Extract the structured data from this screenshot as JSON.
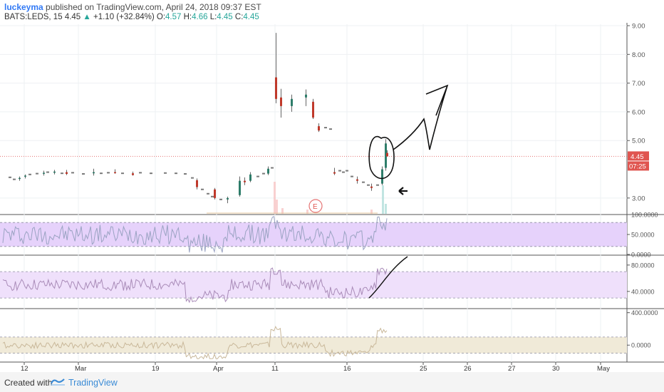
{
  "header": {
    "author": "luckeyma",
    "published_text": "published on TradingView.com, April 24, 2018 09:37 EST"
  },
  "ticker": {
    "symbol": "BATS:LEDS, 15",
    "price": "4.45",
    "arrow": "▲",
    "change": "+1.10 (+32.84%)",
    "open_label": "O:",
    "open": "4.57",
    "high_label": "H:",
    "high": "4.66",
    "low_label": "L:",
    "low": "4.45",
    "close_label": "C:",
    "close": "4.45"
  },
  "footer": {
    "created_with": "Created with",
    "brand": "TradingView"
  },
  "price_badges": {
    "last_price": "4.45",
    "countdown": "07:25"
  },
  "earnings_marker": "E",
  "colors": {
    "up": "#26a69a",
    "down": "#ef5350",
    "badge": "#e05550",
    "rsi_band": "#e6d2fb",
    "mid_band": "#efe0fb",
    "low_band": "#f0ead8",
    "line": "#9aa3b5"
  },
  "chart_data": [
    {
      "type": "candlestick",
      "title": "",
      "y_ticks": [
        "9.00",
        "8.00",
        "7.00",
        "6.00",
        "5.00",
        "3.00"
      ],
      "x_ticks": [
        "12",
        "Mar",
        "19",
        "Apr",
        "11",
        "16",
        "25",
        "26",
        "27",
        "30",
        "May"
      ],
      "ylim": [
        2.45,
        9.05
      ],
      "last_price": 4.45,
      "series": [
        {
          "x": "Mar 12",
          "o": 3.68,
          "h": 3.75,
          "l": 3.6,
          "c": 3.7
        },
        {
          "x": "Mar 13",
          "o": 3.75,
          "h": 3.82,
          "l": 3.68,
          "c": 3.78
        },
        {
          "x": "Mar 14",
          "o": 3.85,
          "h": 3.95,
          "l": 3.78,
          "c": 3.88
        },
        {
          "x": "Mar 15",
          "o": 3.88,
          "h": 3.98,
          "l": 3.82,
          "c": 3.92
        },
        {
          "x": "Mar 16",
          "o": 3.9,
          "h": 3.98,
          "l": 3.8,
          "c": 3.84
        },
        {
          "x": "Mar 19",
          "o": 3.86,
          "h": 4.02,
          "l": 3.78,
          "c": 3.9
        },
        {
          "x": "Mar 20",
          "o": 3.9,
          "h": 4.0,
          "l": 3.85,
          "c": 3.88
        },
        {
          "x": "Mar 21",
          "o": 3.86,
          "h": 3.92,
          "l": 3.78,
          "c": 3.8
        },
        {
          "x": "Mar 22",
          "o": 3.62,
          "h": 3.68,
          "l": 3.3,
          "c": 3.38
        },
        {
          "x": "Mar 23",
          "o": 3.3,
          "h": 3.35,
          "l": 2.95,
          "c": 3.0
        },
        {
          "x": "Apr 2",
          "o": 2.95,
          "h": 3.05,
          "l": 2.82,
          "c": 3.0
        },
        {
          "x": "Apr 3",
          "o": 3.1,
          "h": 3.75,
          "l": 3.05,
          "c": 3.6
        },
        {
          "x": "Apr 4",
          "o": 3.6,
          "h": 3.72,
          "l": 3.45,
          "c": 3.55
        },
        {
          "x": "Apr 5",
          "o": 3.6,
          "h": 3.9,
          "l": 3.55,
          "c": 3.82
        },
        {
          "x": "Apr 6",
          "o": 3.85,
          "h": 4.1,
          "l": 3.8,
          "c": 4.02
        },
        {
          "x": "Apr 11 a",
          "o": 7.2,
          "h": 8.75,
          "l": 6.3,
          "c": 6.45
        },
        {
          "x": "Apr 11 b",
          "o": 6.5,
          "h": 6.8,
          "l": 5.8,
          "c": 6.2
        },
        {
          "x": "Apr 12",
          "o": 6.2,
          "h": 6.6,
          "l": 6.0,
          "c": 6.45
        },
        {
          "x": "Apr 13",
          "o": 6.5,
          "h": 6.78,
          "l": 6.2,
          "c": 6.6
        },
        {
          "x": "Apr 13 b",
          "o": 6.35,
          "h": 6.45,
          "l": 5.75,
          "c": 5.8
        },
        {
          "x": "Apr 16",
          "o": 5.5,
          "h": 5.6,
          "l": 5.3,
          "c": 5.35
        },
        {
          "x": "Apr 17",
          "o": 3.9,
          "h": 4.05,
          "l": 3.8,
          "c": 3.85
        },
        {
          "x": "Apr 18",
          "o": 3.65,
          "h": 3.75,
          "l": 3.5,
          "c": 3.6
        },
        {
          "x": "Apr 19",
          "o": 3.4,
          "h": 3.5,
          "l": 3.25,
          "c": 3.35
        },
        {
          "x": "Apr 20",
          "o": 3.5,
          "h": 4.1,
          "l": 3.45,
          "c": 4.0
        },
        {
          "x": "Apr 23",
          "o": 4.05,
          "h": 5.05,
          "l": 3.95,
          "c": 4.9
        },
        {
          "x": "Apr 24",
          "o": 4.57,
          "h": 4.66,
          "l": 4.45,
          "c": 4.45
        }
      ]
    },
    {
      "type": "line",
      "name": "oscillator 1",
      "y_ticks": [
        "100.0000",
        "50.0000",
        "0.0000"
      ],
      "ylim": [
        0,
        100
      ],
      "band": [
        20,
        80
      ]
    },
    {
      "type": "line",
      "name": "oscillator 2",
      "y_ticks": [
        "80.0000",
        "40.0000"
      ],
      "ylim": [
        15,
        95
      ],
      "band": [
        30,
        70
      ]
    },
    {
      "type": "line",
      "name": "oscillator 3",
      "y_ticks": [
        "400.0000",
        "0.0000"
      ],
      "ylim": [
        -200,
        450
      ],
      "band": [
        -100,
        100
      ]
    }
  ]
}
